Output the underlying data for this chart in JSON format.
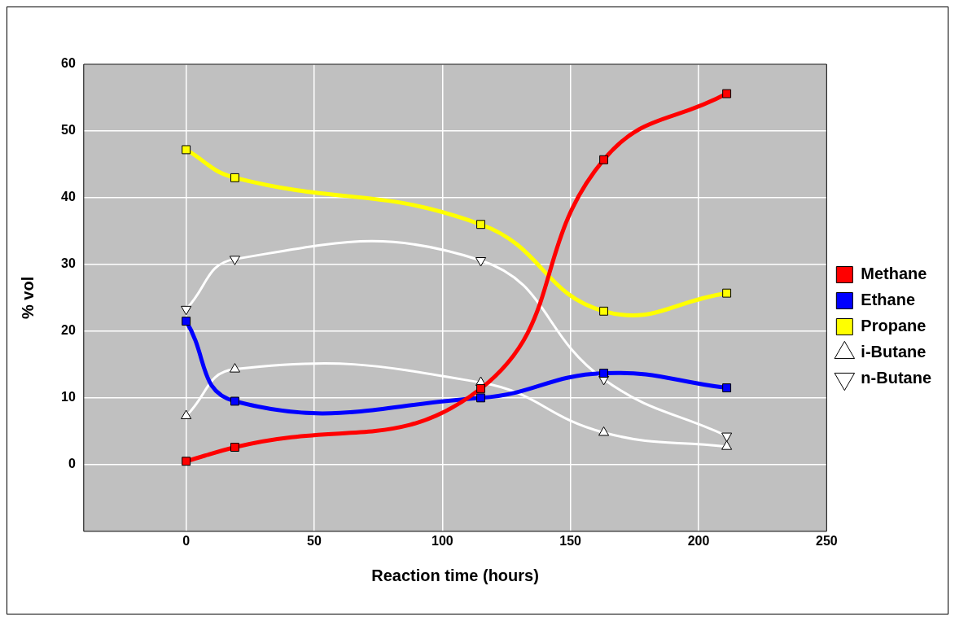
{
  "chart_data": {
    "type": "line",
    "xlabel": "Reaction time (hours)",
    "ylabel": "% vol",
    "x": [
      0,
      19,
      115,
      163,
      211
    ],
    "xlim": [
      -40,
      250
    ],
    "xticks": [
      0,
      50,
      100,
      150,
      200,
      250
    ],
    "ylim": [
      -10,
      60
    ],
    "yticks": [
      0,
      10,
      20,
      30,
      40,
      50,
      60
    ],
    "grid": true,
    "legend": "right",
    "line_style": "solid",
    "series": [
      {
        "name": "Methane",
        "color": "#ff0000",
        "marker": "square",
        "values": [
          0.5,
          2.6,
          11.4,
          45.7,
          55.6
        ]
      },
      {
        "name": "Ethane",
        "color": "#0000ff",
        "marker": "square",
        "values": [
          21.5,
          9.5,
          10,
          13.7,
          11.5
        ]
      },
      {
        "name": "Propane",
        "color": "#ffff00",
        "marker": "square",
        "values": [
          47.2,
          43,
          36,
          23,
          25.7
        ]
      },
      {
        "name": "i-Butane",
        "color": "#ffffff",
        "marker": "triangle",
        "values": [
          7.3,
          14.3,
          12.3,
          4.8,
          2.7
        ]
      },
      {
        "name": "n-Butane",
        "color": "#ffffff",
        "marker": "triangle_down",
        "values": [
          23.3,
          30.8,
          30.6,
          12.8,
          4.3
        ]
      }
    ]
  }
}
